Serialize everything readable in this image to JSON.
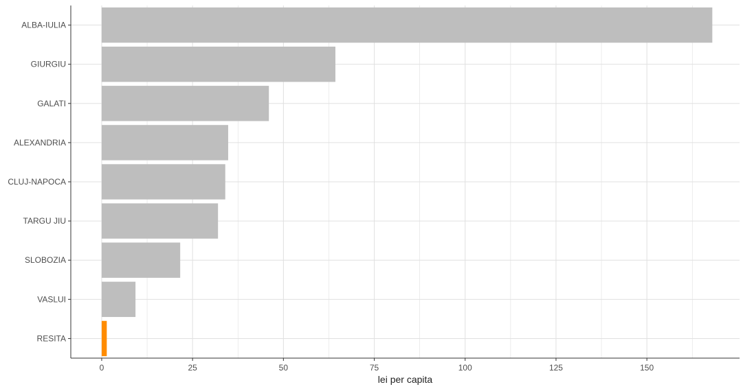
{
  "chart_data": {
    "type": "bar",
    "orientation": "horizontal",
    "categories": [
      "ALBA-IULIA",
      "GIURGIU",
      "GALATI",
      "ALEXANDRIA",
      "CLUJ-NAPOCA",
      "TARGU JIU",
      "SLOBOZIA",
      "VASLUI",
      "RESITA"
    ],
    "values": [
      168,
      64.3,
      46,
      34.8,
      34,
      32,
      21.6,
      9.3,
      1.4
    ],
    "highlight": "RESITA",
    "xlabel": "lei per capita",
    "ylabel": "",
    "xlim": [
      -8.5,
      175.5
    ],
    "xticks": [
      0,
      25,
      50,
      75,
      100,
      125,
      150
    ],
    "grid": true,
    "legend": "none",
    "colors": {
      "bar": "#bebebe",
      "highlight": "#ff8c00",
      "grid": "#e0e0e0",
      "axis": "#333333"
    }
  }
}
